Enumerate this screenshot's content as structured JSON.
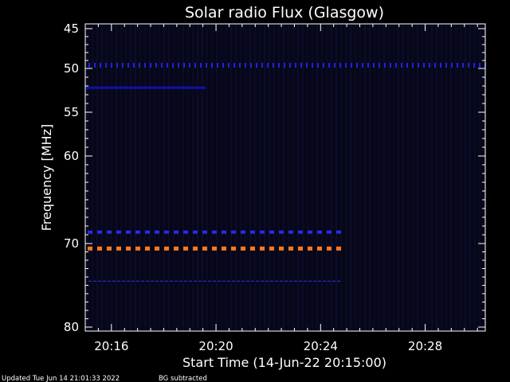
{
  "chart_data": {
    "type": "heatmap",
    "title": "Solar radio Flux (Glasgow)",
    "xlabel": "Start Time (14-Jun-22 20:15:00)",
    "ylabel": "Frequency [MHz]",
    "x_range_minutes": [
      15.0,
      30.3
    ],
    "x_ticks": [
      {
        "label": "20:16",
        "minute": 16
      },
      {
        "label": "20:20",
        "minute": 20
      },
      {
        "label": "20:24",
        "minute": 24
      },
      {
        "label": "20:28",
        "minute": 28
      }
    ],
    "y_range_mhz": [
      45,
      80
    ],
    "y_ticks": [
      {
        "label": "45",
        "mhz": 45
      },
      {
        "label": "50",
        "mhz": 50
      },
      {
        "label": "55",
        "mhz": 55
      },
      {
        "label": "60",
        "mhz": 60
      },
      {
        "label": "70",
        "mhz": 70
      },
      {
        "label": "80",
        "mhz": 80
      }
    ],
    "y_axis_tick_positions_mhz": [
      45,
      50,
      55,
      60,
      70,
      80
    ],
    "grid": false,
    "background_color": "#07071a",
    "features": [
      {
        "name": "interference-50",
        "freq_mhz": 49.6,
        "t_start_min": 15.0,
        "t_end_min": 30.3,
        "style": "dotted",
        "color": "#2222dd"
      },
      {
        "name": "interference-52",
        "freq_mhz": 52.2,
        "t_start_min": 15.0,
        "t_end_min": 19.6,
        "style": "solid",
        "color": "#1111aa"
      },
      {
        "name": "interference-69",
        "freq_mhz": 68.7,
        "t_start_min": 15.0,
        "t_end_min": 24.8,
        "style": "dashed",
        "color": "#2a2aee"
      },
      {
        "name": "interference-70",
        "freq_mhz": 70.6,
        "t_start_min": 15.0,
        "t_end_min": 24.8,
        "style": "dashed",
        "color": "#ff7a1a"
      },
      {
        "name": "interference-74",
        "freq_mhz": 74.5,
        "t_start_min": 15.0,
        "t_end_min": 24.8,
        "style": "thin",
        "color": "#2a2acc"
      }
    ]
  },
  "footer": {
    "updated": "Updated Tue Jun 14 21:01:33 2022",
    "bg_note": "BG subtracted"
  }
}
